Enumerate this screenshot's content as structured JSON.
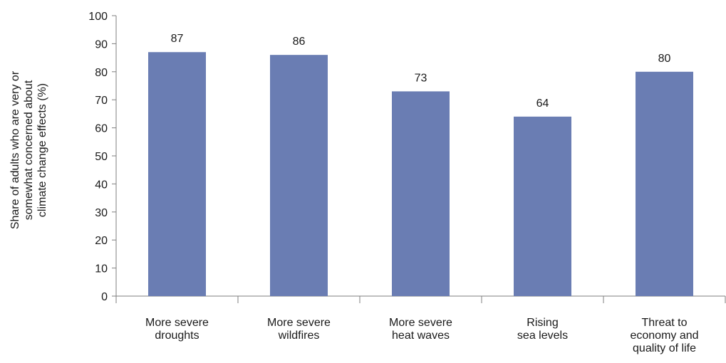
{
  "chart_data": {
    "type": "bar",
    "title": "",
    "xlabel": "",
    "ylabel": [
      "Share of adults who are very or",
      "somewhat concerned about",
      "climate change effects (%)"
    ],
    "categories": [
      [
        "More severe",
        "droughts"
      ],
      [
        "More severe",
        "wildfires"
      ],
      [
        "More severe",
        "heat waves"
      ],
      [
        "Rising",
        "sea levels"
      ],
      [
        "Threat to",
        "economy and",
        "quality of life"
      ]
    ],
    "values": [
      87,
      86,
      73,
      64,
      80
    ],
    "ylim": [
      0,
      100
    ],
    "yticks": [
      0,
      10,
      20,
      30,
      40,
      50,
      60,
      70,
      80,
      90,
      100
    ],
    "bar_color": "#6a7db3",
    "grid": false,
    "legend": "none"
  }
}
